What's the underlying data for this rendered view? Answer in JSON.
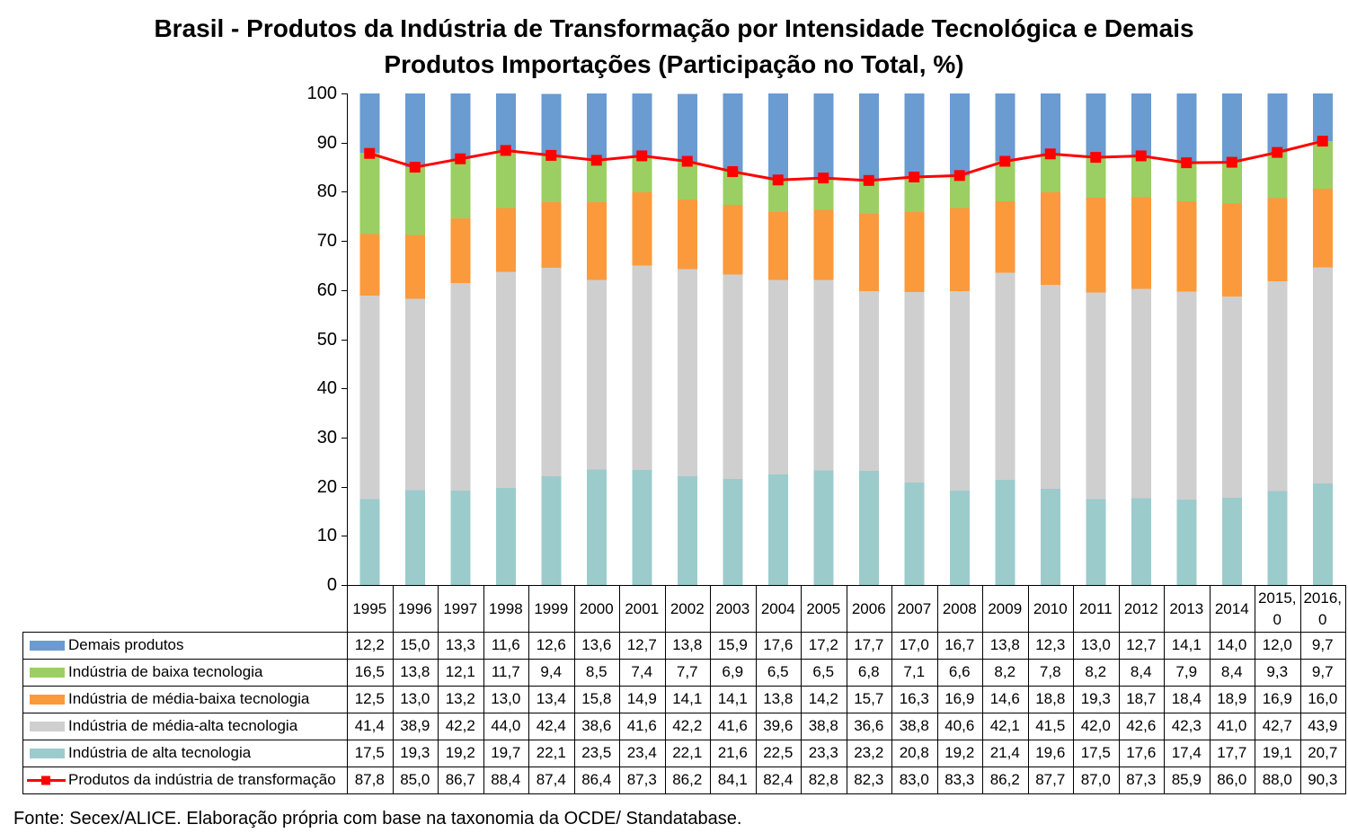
{
  "chart_data": {
    "type": "bar",
    "stacked": true,
    "title": "Brasil - Produtos da Indústria de Transformação por Intensidade Tecnológica e Demais Produtos Importações (Participação no Total, %)",
    "ylim": [
      0,
      100
    ],
    "y_ticks": [
      0,
      10,
      20,
      30,
      40,
      50,
      60,
      70,
      80,
      90,
      100
    ],
    "grid": false,
    "legend": "data-table-below",
    "categories": [
      "1995",
      "1996",
      "1997",
      "1998",
      "1999",
      "2000",
      "2001",
      "2002",
      "2003",
      "2004",
      "2005",
      "2006",
      "2007",
      "2008",
      "2009",
      "2010",
      "2011",
      "2012",
      "2013",
      "2014",
      "2015,0",
      "2016,0"
    ],
    "series": [
      {
        "name": "Demais produtos",
        "type": "bar",
        "color": "#6a9bd1",
        "values": [
          12.2,
          15.0,
          13.3,
          11.6,
          12.6,
          13.6,
          12.7,
          13.8,
          15.9,
          17.6,
          17.2,
          17.7,
          17.0,
          16.7,
          13.8,
          12.3,
          13.0,
          12.7,
          14.1,
          14.0,
          12.0,
          9.7
        ],
        "labels": [
          "12,2",
          "15,0",
          "13,3",
          "11,6",
          "12,6",
          "13,6",
          "12,7",
          "13,8",
          "15,9",
          "17,6",
          "17,2",
          "17,7",
          "17,0",
          "16,7",
          "13,8",
          "12,3",
          "13,0",
          "12,7",
          "14,1",
          "14,0",
          "12,0",
          "9,7"
        ]
      },
      {
        "name": "Indústria de baixa tecnologia",
        "type": "bar",
        "color": "#9bcf63",
        "values": [
          16.5,
          13.8,
          12.1,
          11.7,
          9.4,
          8.5,
          7.4,
          7.7,
          6.9,
          6.5,
          6.5,
          6.8,
          7.1,
          6.6,
          8.2,
          7.8,
          8.2,
          8.4,
          7.9,
          8.4,
          9.3,
          9.7
        ],
        "labels": [
          "16,5",
          "13,8",
          "12,1",
          "11,7",
          "9,4",
          "8,5",
          "7,4",
          "7,7",
          "6,9",
          "6,5",
          "6,5",
          "6,8",
          "7,1",
          "6,6",
          "8,2",
          "7,8",
          "8,2",
          "8,4",
          "7,9",
          "8,4",
          "9,3",
          "9,7"
        ]
      },
      {
        "name": "Indústria de média-baixa tecnologia",
        "type": "bar",
        "color": "#fb9a3c",
        "values": [
          12.5,
          13.0,
          13.2,
          13.0,
          13.4,
          15.8,
          14.9,
          14.1,
          14.1,
          13.8,
          14.2,
          15.7,
          16.3,
          16.9,
          14.6,
          18.8,
          19.3,
          18.7,
          18.4,
          18.9,
          16.9,
          16.0
        ],
        "labels": [
          "12,5",
          "13,0",
          "13,2",
          "13,0",
          "13,4",
          "15,8",
          "14,9",
          "14,1",
          "14,1",
          "13,8",
          "14,2",
          "15,7",
          "16,3",
          "16,9",
          "14,6",
          "18,8",
          "19,3",
          "18,7",
          "18,4",
          "18,9",
          "16,9",
          "16,0"
        ]
      },
      {
        "name": "Indústria de média-alta tecnologia",
        "type": "bar",
        "color": "#cfcfcf",
        "values": [
          41.4,
          38.9,
          42.2,
          44.0,
          42.4,
          38.6,
          41.6,
          42.2,
          41.6,
          39.6,
          38.8,
          36.6,
          38.8,
          40.6,
          42.1,
          41.5,
          42.0,
          42.6,
          42.3,
          41.0,
          42.7,
          43.9
        ],
        "labels": [
          "41,4",
          "38,9",
          "42,2",
          "44,0",
          "42,4",
          "38,6",
          "41,6",
          "42,2",
          "41,6",
          "39,6",
          "38,8",
          "36,6",
          "38,8",
          "40,6",
          "42,1",
          "41,5",
          "42,0",
          "42,6",
          "42,3",
          "41,0",
          "42,7",
          "43,9"
        ]
      },
      {
        "name": "Indústria de alta tecnologia",
        "type": "bar",
        "color": "#9ccbcc",
        "values": [
          17.5,
          19.3,
          19.2,
          19.7,
          22.1,
          23.5,
          23.4,
          22.1,
          21.6,
          22.5,
          23.3,
          23.2,
          20.8,
          19.2,
          21.4,
          19.6,
          17.5,
          17.6,
          17.4,
          17.7,
          19.1,
          20.7
        ],
        "labels": [
          "17,5",
          "19,3",
          "19,2",
          "19,7",
          "22,1",
          "23,5",
          "23,4",
          "22,1",
          "21,6",
          "22,5",
          "23,3",
          "23,2",
          "20,8",
          "19,2",
          "21,4",
          "19,6",
          "17,5",
          "17,6",
          "17,4",
          "17,7",
          "19,1",
          "20,7"
        ]
      },
      {
        "name": "Produtos da indústria de transformação",
        "type": "line",
        "marker": "square",
        "color": "#ff0000",
        "values": [
          87.8,
          85.0,
          86.7,
          88.4,
          87.4,
          86.4,
          87.3,
          86.2,
          84.1,
          82.4,
          82.8,
          82.3,
          83.0,
          83.3,
          86.2,
          87.7,
          87.0,
          87.3,
          85.9,
          86.0,
          88.0,
          90.3
        ],
        "labels": [
          "87,8",
          "85,0",
          "86,7",
          "88,4",
          "87,4",
          "86,4",
          "87,3",
          "86,2",
          "84,1",
          "82,4",
          "82,8",
          "82,3",
          "83,0",
          "83,3",
          "86,2",
          "87,7",
          "87,0",
          "87,3",
          "85,9",
          "86,0",
          "88,0",
          "90,3"
        ]
      }
    ]
  },
  "footer": {
    "source": "Fonte: Secex/ALICE. Elaboração própria com base na taxonomia da OCDE/ Standatabase."
  }
}
